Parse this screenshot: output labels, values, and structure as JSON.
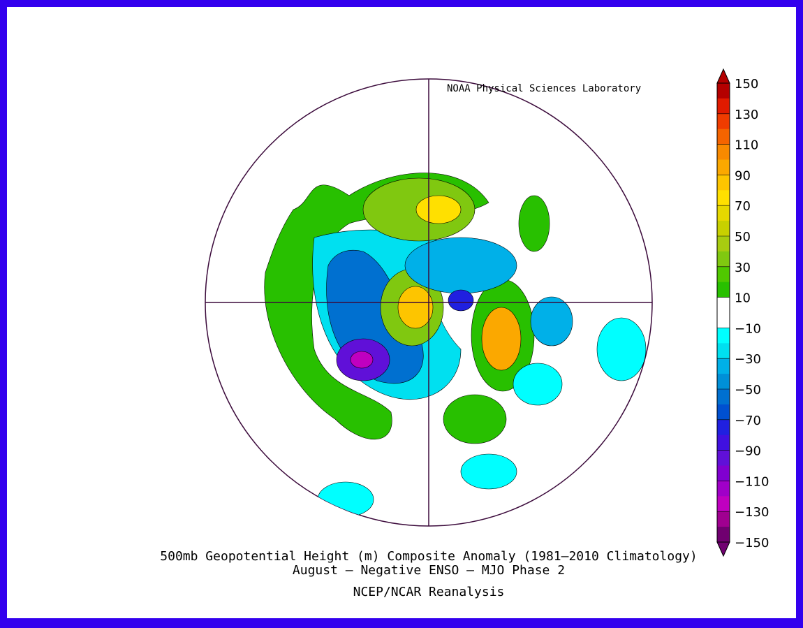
{
  "credit": "NOAA Physical Sciences Laboratory",
  "title": [
    "500mb Geopotential Height (m) Composite Anomaly (1981–2010 Climatology)",
    "August – Negative ENSO – MJO Phase 2"
  ],
  "source": "NCEP/NCAR Reanalysis",
  "colorbar": {
    "ticks": [
      150,
      130,
      110,
      90,
      70,
      50,
      30,
      10,
      {
        "value": -10,
        "label": "−10"
      },
      {
        "value": -30,
        "label": "−30"
      },
      {
        "value": -50,
        "label": "−50"
      },
      {
        "value": -70,
        "label": "−70"
      },
      {
        "value": -90,
        "label": "−90"
      },
      {
        "value": -110,
        "label": "−110"
      },
      {
        "value": -130,
        "label": "−130"
      },
      {
        "value": -150,
        "label": "−150"
      }
    ],
    "colors": [
      "#b40000",
      "#e11a00",
      "#f03c00",
      "#f56400",
      "#f98a00",
      "#fba800",
      "#fdc500",
      "#ffe000",
      "#e6d800",
      "#c8d000",
      "#a8cc10",
      "#80c810",
      "#50c800",
      "#28c000",
      "#ffffff",
      "#ffffff",
      "#00ffff",
      "#00e0f0",
      "#00b0e8",
      "#0090d8",
      "#0070d0",
      "#0050d0",
      "#2020e0",
      "#4010e0",
      "#6010d8",
      "#8000d0",
      "#a000c8",
      "#c000c0",
      "#a00090",
      "#700070"
    ]
  }
}
